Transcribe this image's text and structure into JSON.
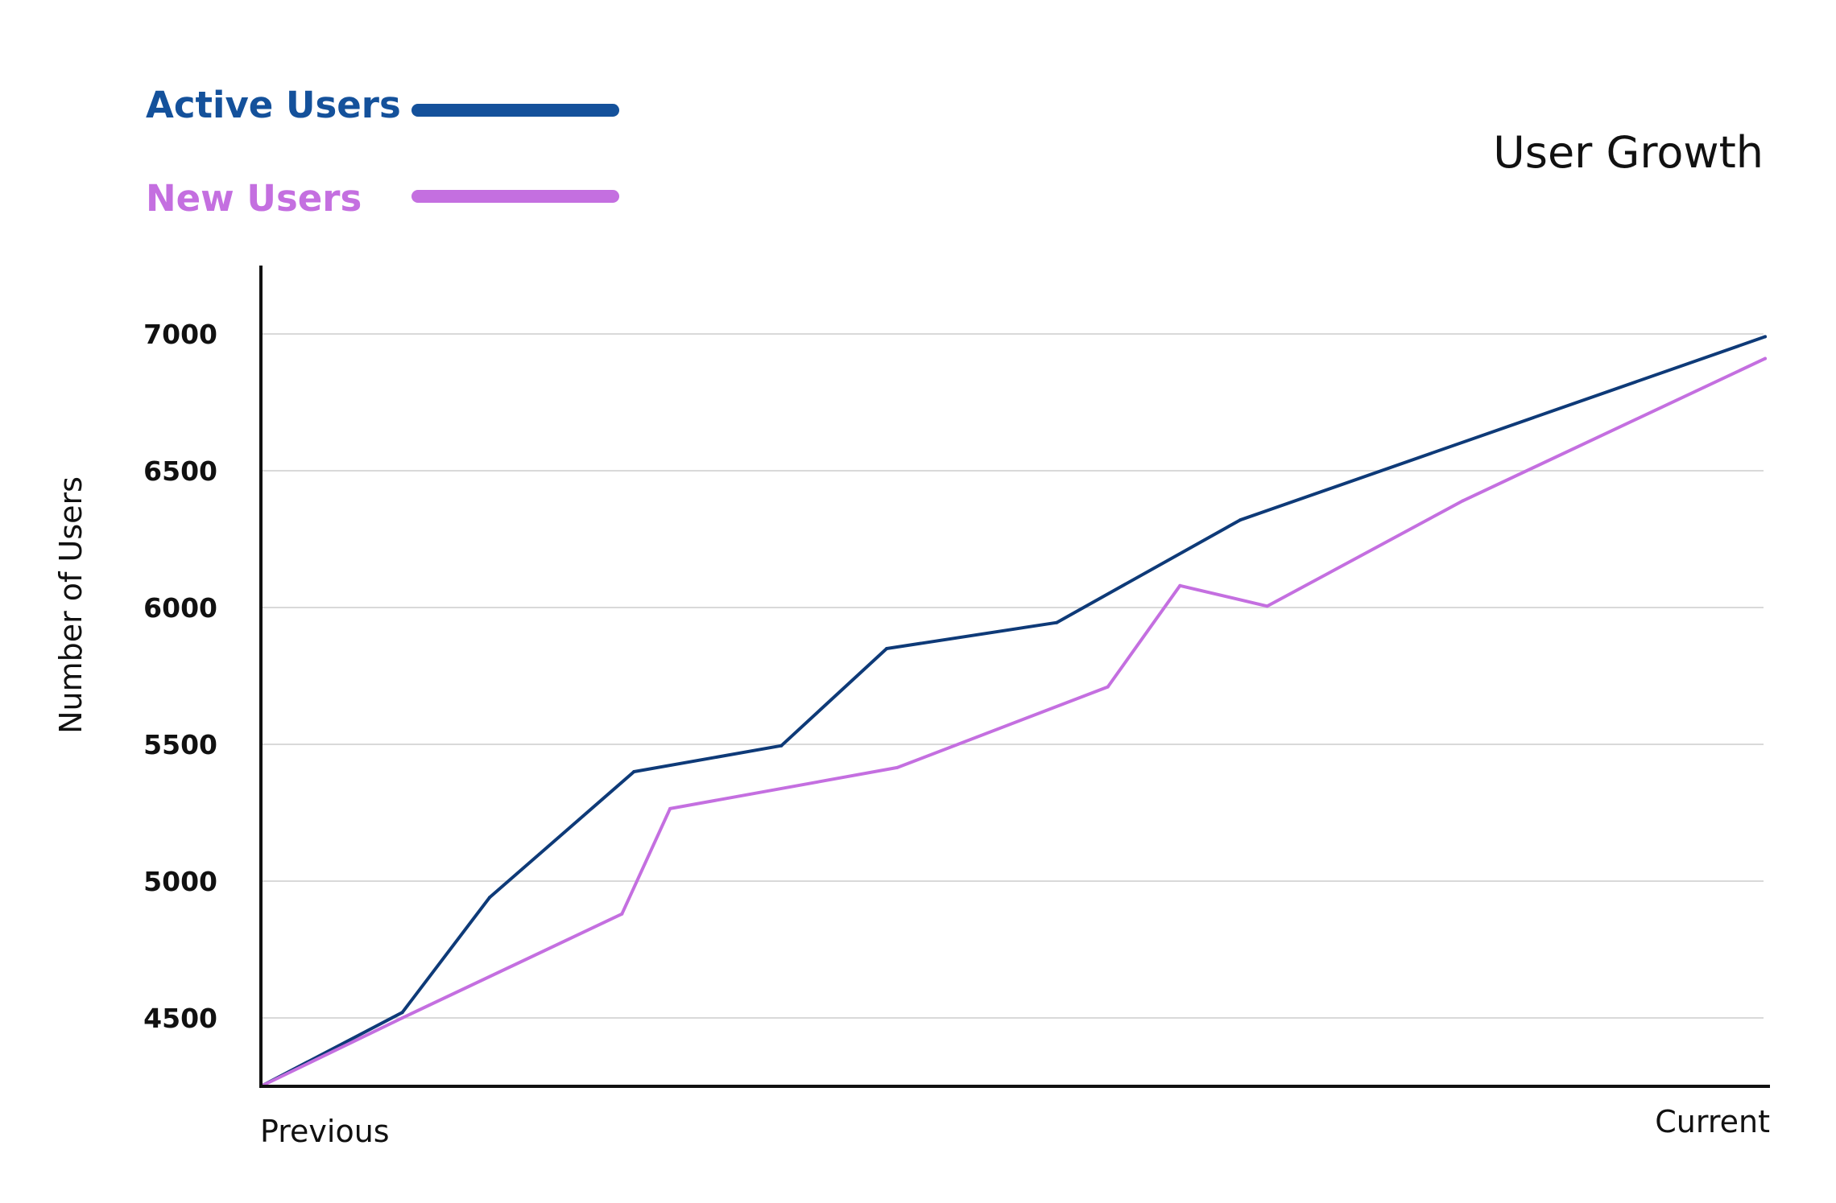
{
  "chart_data": {
    "type": "line",
    "title": "User Growth",
    "xlabel": "",
    "ylabel": "Number of Users",
    "x_tick_labels": [
      "Previous",
      "Current"
    ],
    "x_range": [
      0,
      1
    ],
    "ylim": [
      4250,
      7250
    ],
    "y_ticks": [
      4500,
      5000,
      5500,
      6000,
      6500,
      7000
    ],
    "grid": "horizontal",
    "legend_position": "top-left",
    "series": [
      {
        "name": "Active Users",
        "color": "#0e3a78",
        "legend_color": "#14519b",
        "x": [
          0,
          0.094,
          0.152,
          0.248,
          0.346,
          0.416,
          0.529,
          0.651,
          1.0
        ],
        "y": [
          4250,
          4520,
          4940,
          5400,
          5495,
          5850,
          5945,
          6320,
          6990
        ]
      },
      {
        "name": "New Users",
        "color": "#c46fe0",
        "legend_color": "#c46fe0",
        "x": [
          0,
          0.094,
          0.24,
          0.272,
          0.423,
          0.563,
          0.611,
          0.669,
          0.799,
          1.0
        ],
        "y": [
          4250,
          4500,
          4880,
          5265,
          5415,
          5710,
          6080,
          6005,
          6390,
          6910
        ]
      }
    ]
  }
}
